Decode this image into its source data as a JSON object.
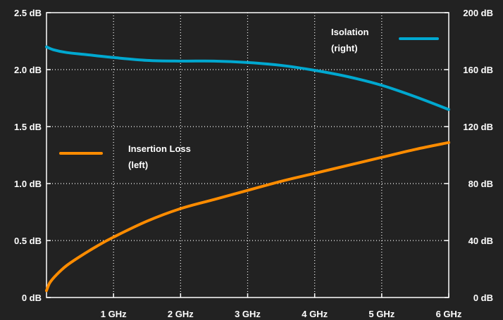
{
  "chart_data": {
    "type": "line",
    "x_unit": "GHz",
    "x_ticks": [
      {
        "value": 1,
        "label": "1 GHz"
      },
      {
        "value": 2,
        "label": "2 GHz"
      },
      {
        "value": 3,
        "label": "3 GHz"
      },
      {
        "value": 4,
        "label": "4 GHz"
      },
      {
        "value": 5,
        "label": "5 GHz"
      },
      {
        "value": 6,
        "label": "6 GHz"
      }
    ],
    "xlim": [
      0,
      6
    ],
    "y_left": {
      "ylim": [
        0,
        2.5
      ],
      "ticks": [
        {
          "value": 0,
          "label": "0 dB"
        },
        {
          "value": 0.5,
          "label": "0.5 dB"
        },
        {
          "value": 1.0,
          "label": "1.0 dB"
        },
        {
          "value": 1.5,
          "label": "1.5 dB"
        },
        {
          "value": 2.0,
          "label": "2.0 dB"
        },
        {
          "value": 2.5,
          "label": "2.5 dB"
        }
      ]
    },
    "y_right": {
      "ylim": [
        0,
        200
      ],
      "ticks": [
        {
          "value": 0,
          "label": "0 dB"
        },
        {
          "value": 40,
          "label": "40 dB"
        },
        {
          "value": 80,
          "label": "80 dB"
        },
        {
          "value": 120,
          "label": "120 dB"
        },
        {
          "value": 160,
          "label": "160 dB"
        },
        {
          "value": 200,
          "label": "200 dB"
        }
      ]
    },
    "grid": true,
    "series": [
      {
        "legend_lines": [
          "Insertion Loss",
          "(left)"
        ],
        "axis": "left",
        "color": "#ff8c00",
        "legend_position": "middle-left",
        "x": [
          0,
          0.05,
          0.15,
          0.3,
          0.5,
          0.75,
          1,
          1.5,
          2,
          2.5,
          3,
          3.5,
          4,
          4.5,
          5,
          5.5,
          6
        ],
        "y": [
          0.06,
          0.13,
          0.2,
          0.28,
          0.36,
          0.45,
          0.53,
          0.67,
          0.78,
          0.86,
          0.94,
          1.02,
          1.09,
          1.16,
          1.23,
          1.3,
          1.36
        ]
      },
      {
        "legend_lines": [
          "Isolation",
          "(right)"
        ],
        "axis": "right",
        "color": "#00a8d0",
        "legend_position": "top-right",
        "x": [
          0,
          0.1,
          0.3,
          0.6,
          1,
          1.5,
          2,
          2.5,
          3,
          3.5,
          4,
          4.5,
          5,
          5.5,
          6
        ],
        "y": [
          176,
          174,
          172,
          170.5,
          168.5,
          166.5,
          166,
          166,
          165,
          163,
          159.5,
          155,
          149,
          141,
          132
        ]
      }
    ]
  }
}
